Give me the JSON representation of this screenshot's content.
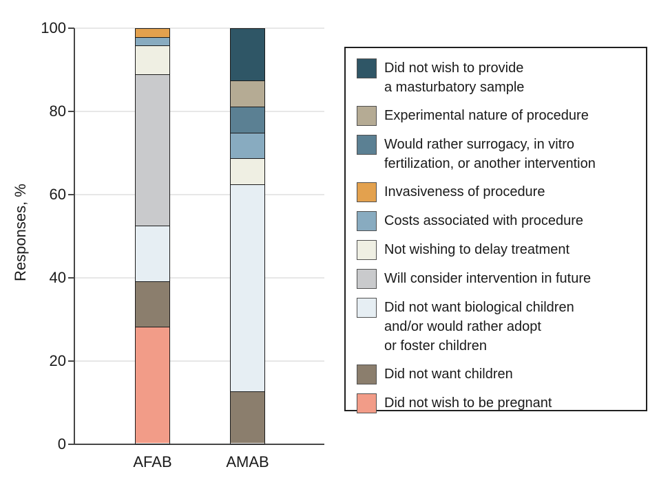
{
  "chart_data": {
    "type": "bar",
    "stacked": true,
    "title": "",
    "xlabel": "",
    "ylabel": "Responses, %",
    "ylim": [
      0,
      100
    ],
    "yticks": [
      0,
      20,
      40,
      60,
      80,
      100
    ],
    "grid": "horizontal",
    "legend_position": "right",
    "categories": [
      "AFAB",
      "AMAB"
    ],
    "series": [
      {
        "name": "Did not wish to be pregnant",
        "color": "#F29C88",
        "values": [
          28,
          0
        ]
      },
      {
        "name": "Did not want children",
        "color": "#8B7E6D",
        "values": [
          11,
          12.5
        ]
      },
      {
        "name": "Did not want biological children and/or would rather adopt or foster children",
        "color": "#E6EEF3",
        "values": [
          13.5,
          50
        ]
      },
      {
        "name": "Will consider intervention in future",
        "color": "#C9CACC",
        "values": [
          36.5,
          0
        ]
      },
      {
        "name": "Not wishing to delay treatment",
        "color": "#EFEFE3",
        "values": [
          7,
          6.25
        ]
      },
      {
        "name": "Costs associated with procedure",
        "color": "#88ABC0",
        "values": [
          2,
          6.25
        ]
      },
      {
        "name": "Invasiveness of procedure",
        "color": "#E3A14E",
        "values": [
          2,
          0
        ]
      },
      {
        "name": "Would rather surrogacy, in vitro fertilization, or another intervention",
        "color": "#5B8093",
        "values": [
          0,
          6.25
        ]
      },
      {
        "name": "Experimental nature of procedure",
        "color": "#B5AB94",
        "values": [
          0,
          6.25
        ]
      },
      {
        "name": "Did not wish to provide a masturbatory sample",
        "color": "#2F5666",
        "values": [
          0,
          12.5
        ]
      }
    ]
  },
  "legend": {
    "items": [
      {
        "label": "Did not wish to provide\na masturbatory sample",
        "color": "#2F5666"
      },
      {
        "label": "Experimental nature of procedure",
        "color": "#B5AB94"
      },
      {
        "label": "Would rather surrogacy, in vitro\nfertilization, or another intervention",
        "color": "#5B8093"
      },
      {
        "label": "Invasiveness of procedure",
        "color": "#E3A14E"
      },
      {
        "label": "Costs associated with procedure",
        "color": "#88ABC0"
      },
      {
        "label": "Not wishing to delay treatment",
        "color": "#EFEFE3"
      },
      {
        "label": "Will consider intervention in future",
        "color": "#C9CACC"
      },
      {
        "label": "Did not want biological children\nand/or would rather adopt\nor foster children",
        "color": "#E6EEF3"
      },
      {
        "label": "Did not want children",
        "color": "#8B7E6D"
      },
      {
        "label": "Did not wish to be pregnant",
        "color": "#F29C88"
      }
    ]
  }
}
